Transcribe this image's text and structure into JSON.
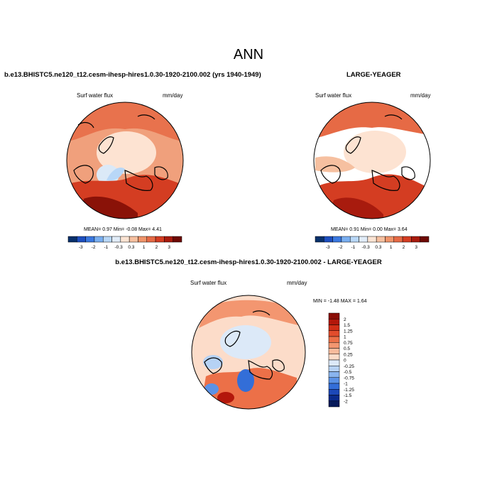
{
  "main_title": "ANN",
  "panels": [
    {
      "id": "left",
      "title": "b.e13.BHISTC5.ne120_t12.cesm-ihesp-hires1.0.30-1920-2100.002 (yrs 1940-1949)",
      "variable_label": "Surf water flux",
      "units": "mm/day",
      "stats": "MEAN=   0.97  Min=   -0.08  Max=   4.41"
    },
    {
      "id": "right",
      "title": "LARGE-YEAGER",
      "variable_label": "Surf water flux",
      "units": "mm/day",
      "stats": "MEAN=   0.91  Min=   0.00  Max=   3.64"
    },
    {
      "id": "diff",
      "title": "b.e13.BHISTC5.ne120_t12.cesm-ihesp-hires1.0.30-1920-2100.002 - LARGE-YEAGER",
      "variable_label": "Surf water flux",
      "units": "mm/day",
      "stats": "MIN =  -1.48 MAX =   1.64"
    }
  ],
  "colorbar_top": {
    "labels": [
      "-3",
      "-2",
      "-1",
      "-0.3",
      "0.3",
      "1",
      "2",
      "3"
    ],
    "colors": [
      "#08306b",
      "#1d4fbf",
      "#3a78e0",
      "#79aef0",
      "#b8d7f7",
      "#e1ecf8",
      "#fbe4d3",
      "#f6c0a0",
      "#f0946a",
      "#e66a45",
      "#d43d22",
      "#a81b0e",
      "#6e0a05"
    ]
  },
  "colorbar_diff": {
    "labels": [
      "2",
      "1.5",
      "1.25",
      "1",
      "0.75",
      "0.5",
      "0.25",
      "0",
      "-0.25",
      "-0.5",
      "-0.75",
      "-1",
      "-1.25",
      "-1.5",
      "-2"
    ],
    "colors": [
      "#8a0d06",
      "#b3170b",
      "#d12e17",
      "#e24c2c",
      "#ec7048",
      "#f39670",
      "#f8bc9d",
      "#fcdcc9",
      "#dce9f8",
      "#b6d2f4",
      "#89b4ee",
      "#5b92e6",
      "#336ed8",
      "#1c48b8",
      "#0a2a8c",
      "#061a5a"
    ]
  }
}
